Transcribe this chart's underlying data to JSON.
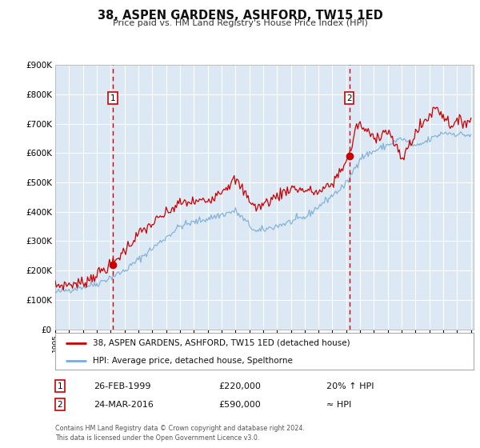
{
  "title": "38, ASPEN GARDENS, ASHFORD, TW15 1ED",
  "subtitle": "Price paid vs. HM Land Registry's House Price Index (HPI)",
  "legend_line1": "38, ASPEN GARDENS, ASHFORD, TW15 1ED (detached house)",
  "legend_line2": "HPI: Average price, detached house, Spelthorne",
  "annotation1_date": "26-FEB-1999",
  "annotation1_price": "£220,000",
  "annotation1_hpi": "20% ↑ HPI",
  "annotation2_date": "24-MAR-2016",
  "annotation2_price": "£590,000",
  "annotation2_hpi": "≈ HPI",
  "footer": "Contains HM Land Registry data © Crown copyright and database right 2024.\nThis data is licensed under the Open Government Licence v3.0.",
  "background_color": "#ffffff",
  "plot_bg_color": "#dce9f5",
  "grid_color": "#ffffff",
  "red_line_color": "#cc0000",
  "blue_line_color": "#7aadd4",
  "marker_color": "#cc0000",
  "vline_color": "#cc0000",
  "ylim": [
    0,
    900000
  ],
  "xlim_start": 1995.0,
  "xlim_end": 2025.2,
  "ytick_values": [
    0,
    100000,
    200000,
    300000,
    400000,
    500000,
    600000,
    700000,
    800000,
    900000
  ],
  "ytick_labels": [
    "£0",
    "£100K",
    "£200K",
    "£300K",
    "£400K",
    "£500K",
    "£600K",
    "£700K",
    "£800K",
    "£900K"
  ],
  "xtick_years": [
    1995,
    1996,
    1997,
    1998,
    1999,
    2000,
    2001,
    2002,
    2003,
    2004,
    2005,
    2006,
    2007,
    2008,
    2009,
    2010,
    2011,
    2012,
    2013,
    2014,
    2015,
    2016,
    2017,
    2018,
    2019,
    2020,
    2021,
    2022,
    2023,
    2024,
    2025
  ],
  "sale1_x": 1999.15,
  "sale1_y": 220000,
  "sale2_x": 2016.22,
  "sale2_y": 590000,
  "vline1_x": 1999.15,
  "vline2_x": 2016.22
}
